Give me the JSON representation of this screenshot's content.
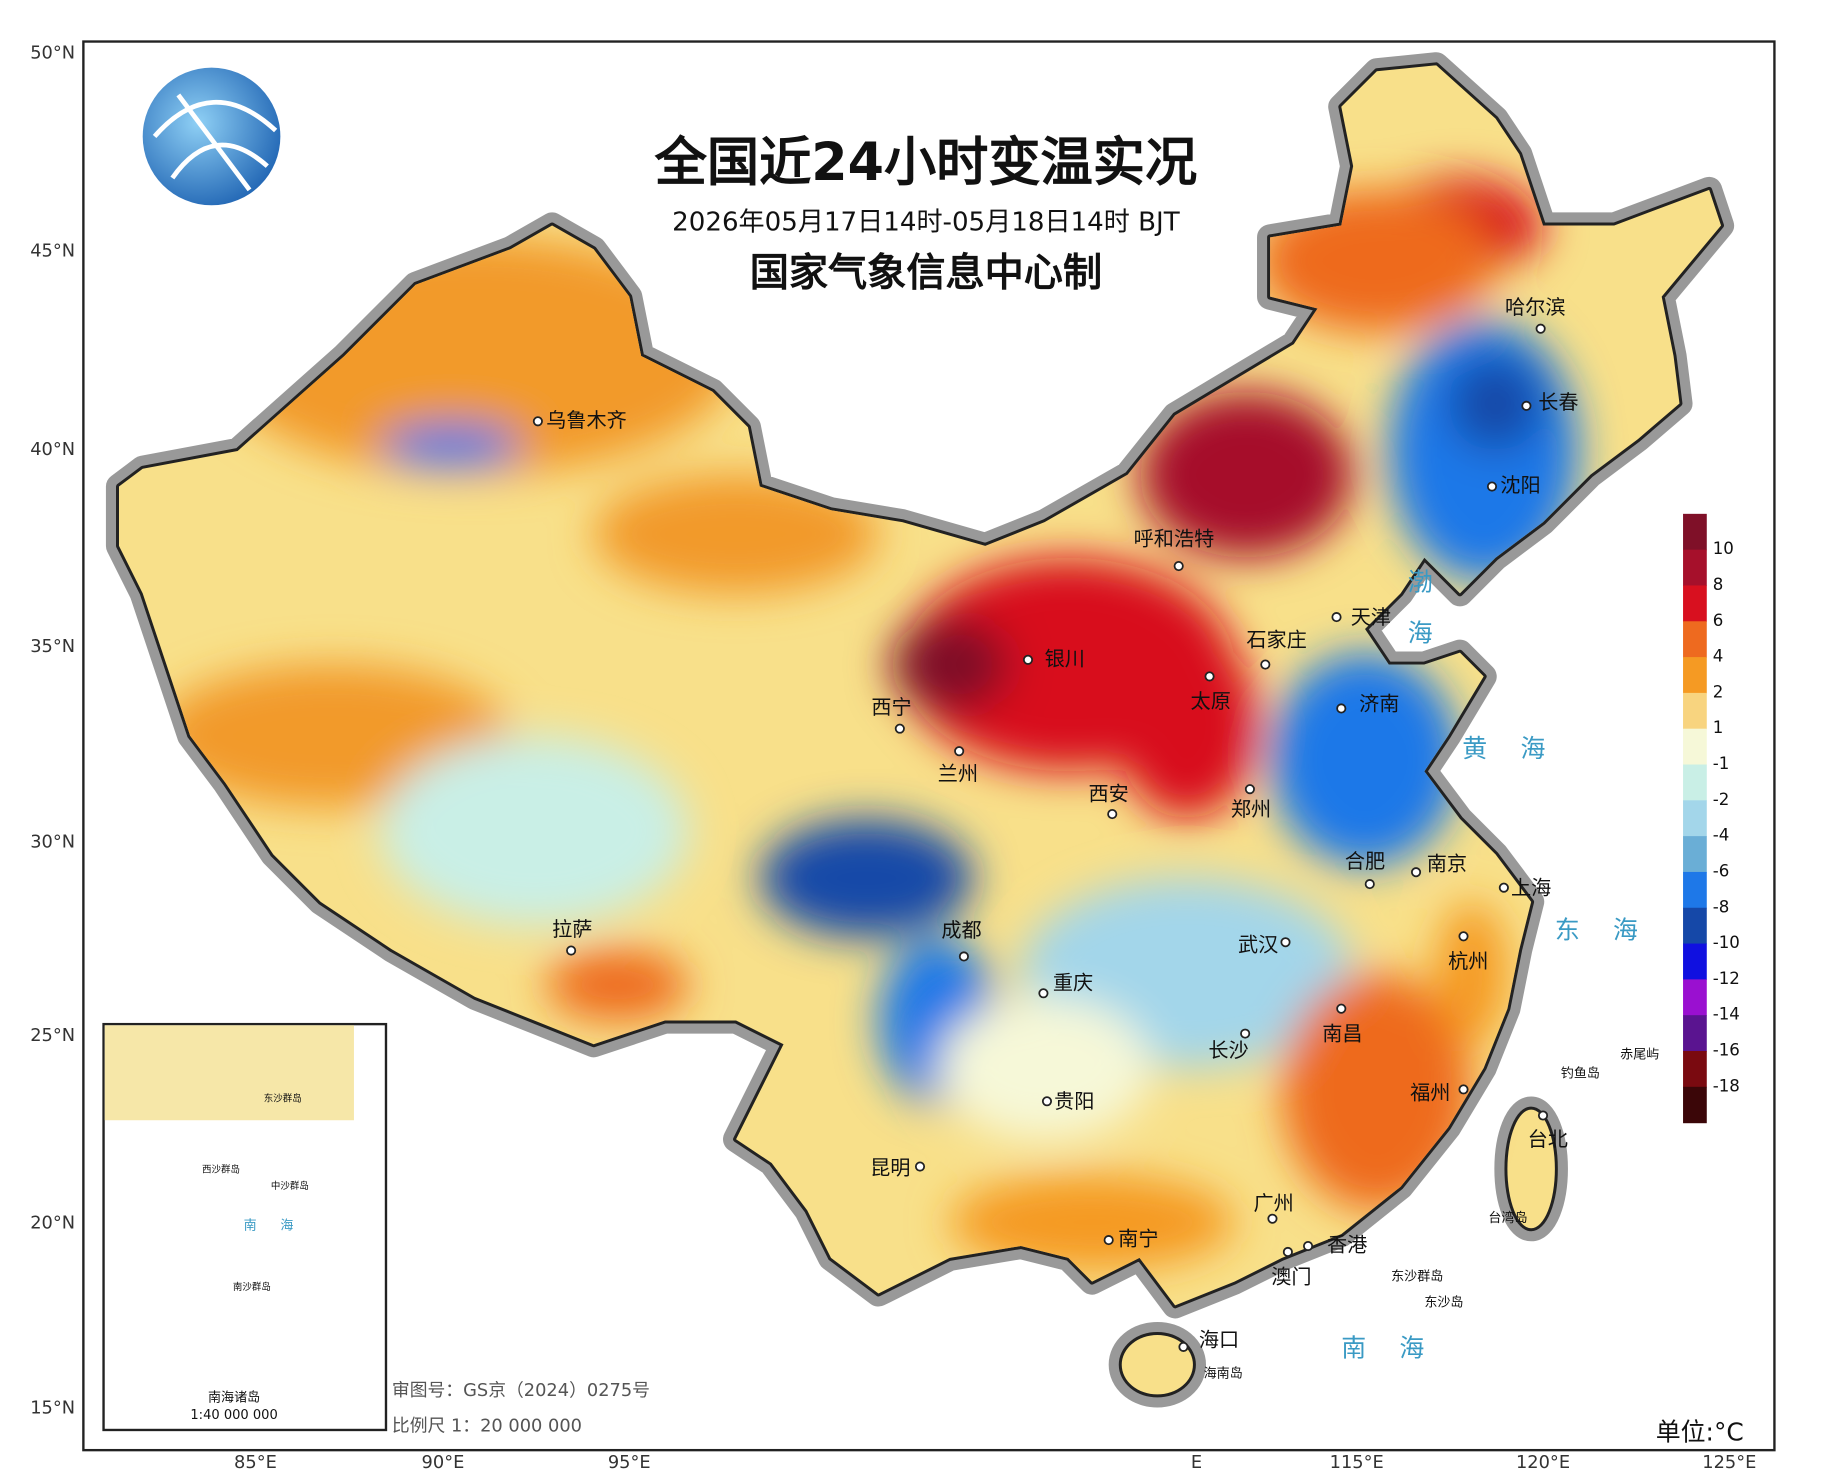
{
  "header": {
    "title": "全国近24小时变温实况",
    "subtitle": "2026年05月17日14时-05月18日14时 BJT",
    "producer": "国家气象信息中心制"
  },
  "axes": {
    "latitude": [
      "50°N",
      "45°N",
      "40°N",
      "35°N",
      "30°N",
      "25°N",
      "20°N",
      "15°N"
    ],
    "longitude": [
      "85°E",
      "90°E",
      "95°E",
      "E",
      "115°E",
      "120°E",
      "125°E"
    ]
  },
  "cities": [
    "乌鲁木齐",
    "呼和浩特",
    "哈尔滨",
    "长春",
    "沈阳",
    "天津",
    "石家庄",
    "银川",
    "太原",
    "济南",
    "西宁",
    "兰州",
    "郑州",
    "西安",
    "合肥",
    "南京",
    "上海",
    "拉萨",
    "成都",
    "武汉",
    "杭州",
    "重庆",
    "长沙",
    "南昌",
    "贵阳",
    "福州",
    "台北",
    "昆明",
    "广州",
    "南宁",
    "香港",
    "澳门",
    "海口"
  ],
  "places": [
    "海南岛",
    "台湾岛",
    "东沙群岛",
    "东沙岛",
    "钓鱼岛",
    "赤尾屿"
  ],
  "seas": [
    "渤海",
    "黄海",
    "东海",
    "南海"
  ],
  "legend": {
    "levels": [
      10,
      8,
      6,
      4,
      2,
      1,
      -1,
      -2,
      -4,
      -6,
      -8,
      -10,
      -12,
      -14,
      -16,
      -18
    ],
    "colors": [
      "#7f1028",
      "#a6102b",
      "#d8101f",
      "#ee6a1f",
      "#f59a23",
      "#f8d47f",
      "#f6f8d8",
      "#c9efe6",
      "#a3d6ea",
      "#6aaed6",
      "#1e78e8",
      "#1548a8",
      "#1010e0",
      "#9a10d0",
      "#5a1490",
      "#7a0a10",
      "#3b0608"
    ],
    "unit": "单位:°C"
  },
  "inset": {
    "title": "南海诸岛",
    "scale": "1:40 000 000",
    "labels": [
      "东沙群岛",
      "西沙群岛",
      "中沙群岛",
      "南沙群岛",
      "南海"
    ]
  },
  "footer": {
    "approval": "审图号：GS京（2024）0275号",
    "scale": "比例尺  1：20 000 000"
  }
}
